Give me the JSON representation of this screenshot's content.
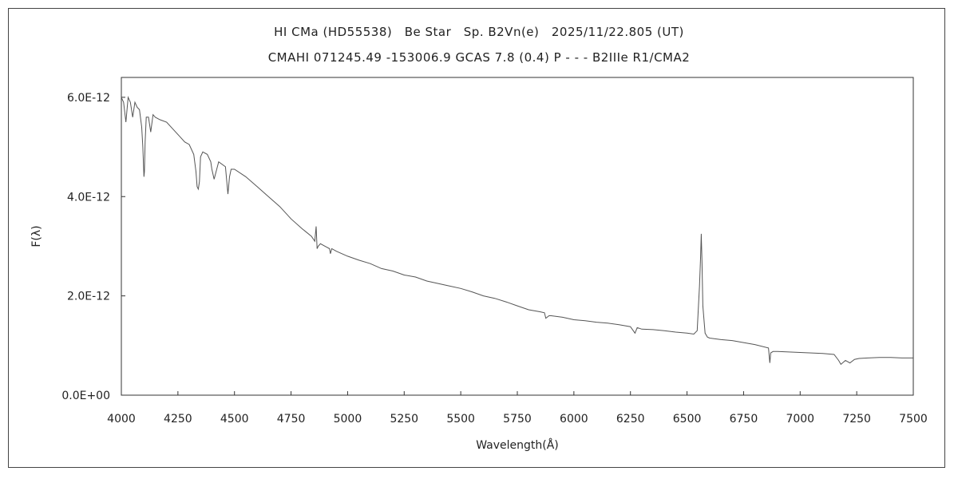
{
  "chart_data": {
    "type": "line",
    "title": "HI CMa (HD55538)　Be Star　Sp. B2Vn(e)　2025/11/22.805 (UT)",
    "subtitle": "CMAHI 071245.49 -153006.9 GCAS 7.8 (0.4) P - - - B2IIIe R1/CMA2",
    "xlabel": "Wavelength(Å)",
    "ylabel": "F(λ)",
    "xlim": [
      4000,
      7500
    ],
    "ylim": [
      0,
      6.4e-12
    ],
    "xticks": [
      4000,
      4250,
      4500,
      4750,
      5000,
      5250,
      5500,
      5750,
      6000,
      6250,
      6500,
      6750,
      7000,
      7250,
      7500
    ],
    "xtick_labels": [
      "4000",
      "4250",
      "4500",
      "4750",
      "5000",
      "5250",
      "5500",
      "5750",
      "6000",
      "6250",
      "6500",
      "6750",
      "7000",
      "7250",
      "7500"
    ],
    "yticks": [
      0,
      2e-12,
      4e-12,
      6e-12
    ],
    "ytick_labels": [
      "0.0E+00",
      "2.0E-12",
      "4.0E-12",
      "6.0E-12"
    ],
    "grid": false,
    "legend": "none",
    "line_color": "#555555",
    "series": [
      {
        "x": [
          4000,
          4010,
          4020,
          4030,
          4040,
          4050,
          4060,
          4070,
          4080,
          4090,
          4095,
          4100,
          4102,
          4105,
          4110,
          4120,
          4130,
          4140,
          4150,
          4170,
          4200,
          4230,
          4260,
          4280,
          4300,
          4320,
          4330,
          4335,
          4340,
          4345,
          4350,
          4360,
          4380,
          4395,
          4400,
          4410,
          4430,
          4460,
          4465,
          4471,
          4478,
          4485,
          4500,
          4550,
          4600,
          4650,
          4700,
          4750,
          4800,
          4840,
          4855,
          4861,
          4865,
          4870,
          4880,
          4900,
          4920,
          4924,
          4930,
          4950,
          5000,
          5050,
          5100,
          5150,
          5200,
          5250,
          5300,
          5350,
          5400,
          5450,
          5500,
          5550,
          5600,
          5650,
          5700,
          5750,
          5800,
          5850,
          5870,
          5876,
          5890,
          5900,
          5950,
          6000,
          6050,
          6100,
          6150,
          6200,
          6250,
          6270,
          6280,
          6300,
          6350,
          6400,
          6450,
          6500,
          6530,
          6545,
          6555,
          6560,
          6563,
          6566,
          6570,
          6580,
          6590,
          6600,
          6650,
          6700,
          6750,
          6800,
          6860,
          6866,
          6870,
          6880,
          6900,
          6950,
          7000,
          7050,
          7100,
          7150,
          7170,
          7180,
          7200,
          7220,
          7240,
          7260,
          7300,
          7350,
          7400,
          7450,
          7500
        ],
        "y": [
          6e-12,
          5.9e-12,
          5.5e-12,
          6e-12,
          5.9e-12,
          5.6e-12,
          5.9e-12,
          5.8e-12,
          5.75e-12,
          5.4e-12,
          5e-12,
          4.4e-12,
          4.5e-12,
          5.1e-12,
          5.6e-12,
          5.6e-12,
          5.3e-12,
          5.65e-12,
          5.6e-12,
          5.55e-12,
          5.5e-12,
          5.35e-12,
          5.2e-12,
          5.1e-12,
          5.05e-12,
          4.85e-12,
          4.5e-12,
          4.2e-12,
          4.15e-12,
          4.3e-12,
          4.8e-12,
          4.9e-12,
          4.85e-12,
          4.7e-12,
          4.55e-12,
          4.35e-12,
          4.7e-12,
          4.6e-12,
          4.35e-12,
          4.05e-12,
          4.4e-12,
          4.55e-12,
          4.55e-12,
          4.4e-12,
          4.2e-12,
          4e-12,
          3.8e-12,
          3.55e-12,
          3.35e-12,
          3.2e-12,
          3.1e-12,
          3.4e-12,
          2.95e-12,
          3e-12,
          3.05e-12,
          3e-12,
          2.95e-12,
          2.85e-12,
          2.95e-12,
          2.9e-12,
          2.8e-12,
          2.72e-12,
          2.65e-12,
          2.55e-12,
          2.5e-12,
          2.42e-12,
          2.38e-12,
          2.3e-12,
          2.25e-12,
          2.2e-12,
          2.15e-12,
          2.08e-12,
          2e-12,
          1.95e-12,
          1.88e-12,
          1.8e-12,
          1.72e-12,
          1.68e-12,
          1.66e-12,
          1.55e-12,
          1.6e-12,
          1.6e-12,
          1.57e-12,
          1.52e-12,
          1.5e-12,
          1.47e-12,
          1.45e-12,
          1.42e-12,
          1.38e-12,
          1.25e-12,
          1.36e-12,
          1.33e-12,
          1.32e-12,
          1.3e-12,
          1.27e-12,
          1.25e-12,
          1.23e-12,
          1.3e-12,
          2.2e-12,
          2.8e-12,
          3.25e-12,
          2.7e-12,
          1.8e-12,
          1.25e-12,
          1.17e-12,
          1.15e-12,
          1.12e-12,
          1.1e-12,
          1.06e-12,
          1.02e-12,
          9.5e-13,
          6.5e-13,
          8.5e-13,
          8.8e-13,
          8.8e-13,
          8.7e-13,
          8.6e-13,
          8.5e-13,
          8.4e-13,
          8.2e-13,
          7e-13,
          6.2e-13,
          7e-13,
          6.5e-13,
          7.2e-13,
          7.4e-13,
          7.5e-13,
          7.6e-13,
          7.6e-13,
          7.5e-13,
          7.5e-13
        ]
      }
    ]
  }
}
